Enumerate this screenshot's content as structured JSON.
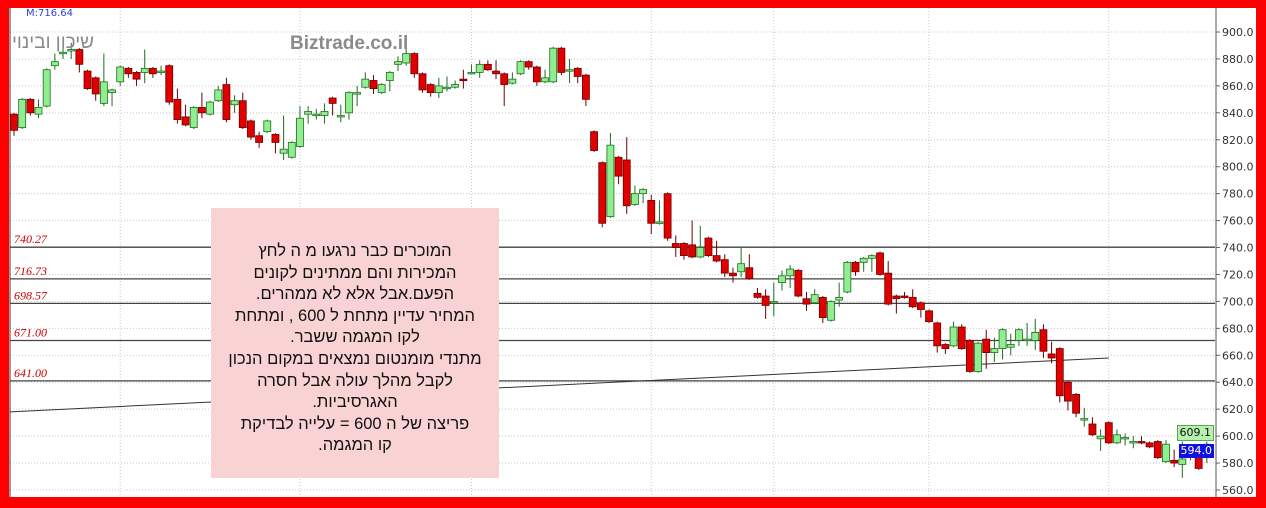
{
  "header": {
    "indicator_label": "M:716.64"
  },
  "watermarks": {
    "company": "שיכון ובינוי",
    "site": "Biztrade.co.il"
  },
  "annotation": {
    "lines": [
      "המוכרים כבר נרגעו  מ ה לחץ",
      "המכירות והם ממתינים  לקונים",
      "הפעם.אבל אלא לא ממהרים.",
      "המחיר  עדיין מתחת ל 600 , ומתחת",
      "לקו המגמה ששבר.",
      "מתנדי מומנטום  נמצאים במקום הנכון",
      "לקבל מהלך עולה אבל חסרה",
      "האגרסיביות.",
      "פריצה של  ה 600 =  עלייה לבדיקת",
      "קו המגמה."
    ]
  },
  "price_tags": {
    "ma": "609.1",
    "last": "594.0"
  },
  "colors": {
    "frame": "#ff0000",
    "up": "#90ee90",
    "down": "#e00000",
    "annotation_bg": "#f9d3d4",
    "level_label": "#cc0000",
    "last_tag": "#1010e0"
  },
  "chart_data": {
    "type": "candlestick",
    "ylim": [
      560,
      900
    ],
    "y_ticks": [
      "560.0",
      "580.0",
      "600.0",
      "620.0",
      "640.0",
      "660.0",
      "680.0",
      "700.0",
      "720.0",
      "740.0",
      "760.0",
      "780.0",
      "800.0",
      "820.0",
      "840.0",
      "860.0",
      "880.0",
      "900.0"
    ],
    "grid": true,
    "levels": [
      {
        "value": 740.27,
        "label": "740.27"
      },
      {
        "value": 716.73,
        "label": "716.73"
      },
      {
        "value": 698.57,
        "label": "698.57"
      },
      {
        "value": 671.0,
        "label": "671.00"
      },
      {
        "value": 641.0,
        "label": "641.00"
      }
    ],
    "trendline": {
      "from": [
        0,
        618
      ],
      "to": [
        134,
        658
      ]
    },
    "ohlc": [
      [
        839,
        840,
        823,
        827
      ],
      [
        829,
        851,
        828,
        850
      ],
      [
        850,
        851,
        838,
        840
      ],
      [
        839,
        850,
        836,
        844
      ],
      [
        845,
        873,
        844,
        872
      ],
      [
        875,
        884,
        872,
        878
      ],
      [
        884,
        890,
        880,
        885
      ],
      [
        886,
        892,
        880,
        887
      ],
      [
        887,
        888,
        870,
        876
      ],
      [
        871,
        872,
        857,
        858
      ],
      [
        866,
        867,
        849,
        854
      ],
      [
        847,
        884,
        845,
        863
      ],
      [
        855,
        858,
        845,
        857
      ],
      [
        863,
        875,
        860,
        874
      ],
      [
        873,
        874,
        866,
        869
      ],
      [
        870,
        871,
        860,
        865
      ],
      [
        870,
        887,
        862,
        873
      ],
      [
        873,
        874,
        866,
        869
      ],
      [
        870,
        875,
        868,
        871
      ],
      [
        875,
        876,
        846,
        848
      ],
      [
        850,
        858,
        832,
        835
      ],
      [
        837,
        846,
        830,
        831
      ],
      [
        829,
        845,
        828,
        844
      ],
      [
        844,
        855,
        836,
        840
      ],
      [
        839,
        849,
        838,
        848
      ],
      [
        849,
        860,
        848,
        857
      ],
      [
        861,
        866,
        833,
        835
      ],
      [
        846,
        853,
        840,
        849
      ],
      [
        849,
        855,
        828,
        829
      ],
      [
        834,
        835,
        820,
        822
      ],
      [
        823,
        826,
        814,
        818
      ],
      [
        826,
        835,
        825,
        834
      ],
      [
        824,
        825,
        810,
        818
      ],
      [
        810,
        838,
        805,
        813
      ],
      [
        807,
        819,
        806,
        818
      ],
      [
        815,
        845,
        814,
        836
      ],
      [
        839,
        845,
        832,
        841
      ],
      [
        839,
        843,
        835,
        839
      ],
      [
        838,
        847,
        832,
        841
      ],
      [
        851,
        852,
        838,
        847
      ],
      [
        838,
        846,
        833,
        838
      ],
      [
        840,
        856,
        835,
        855
      ],
      [
        855,
        860,
        845,
        855
      ],
      [
        859,
        870,
        858,
        865
      ],
      [
        864,
        868,
        854,
        858
      ],
      [
        855,
        862,
        854,
        861
      ],
      [
        864,
        871,
        856,
        870
      ],
      [
        876,
        882,
        871,
        878
      ],
      [
        877,
        889,
        875,
        884
      ],
      [
        884,
        885,
        866,
        869
      ],
      [
        869,
        870,
        855,
        857
      ],
      [
        861,
        862,
        852,
        855
      ],
      [
        855,
        866,
        851,
        860
      ],
      [
        859,
        867,
        856,
        859
      ],
      [
        859,
        864,
        858,
        861
      ],
      [
        865,
        872,
        858,
        864
      ],
      [
        870,
        876,
        869,
        870
      ],
      [
        870,
        879,
        866,
        876
      ],
      [
        876,
        879,
        871,
        872
      ],
      [
        871,
        879,
        865,
        869
      ],
      [
        869,
        870,
        845,
        861
      ],
      [
        862,
        870,
        861,
        865
      ],
      [
        869,
        879,
        868,
        878
      ],
      [
        878,
        879,
        872,
        874
      ],
      [
        874,
        875,
        860,
        863
      ],
      [
        863,
        872,
        862,
        866
      ],
      [
        863,
        889,
        862,
        888
      ],
      [
        888,
        889,
        868,
        870
      ],
      [
        872,
        880,
        862,
        872
      ],
      [
        873,
        874,
        862,
        867
      ],
      [
        868,
        869,
        845,
        850
      ],
      [
        826,
        827,
        811,
        812
      ],
      [
        803,
        804,
        755,
        758
      ],
      [
        763,
        825,
        762,
        816
      ],
      [
        807,
        808,
        787,
        793
      ],
      [
        805,
        822,
        765,
        771
      ],
      [
        772,
        786,
        771,
        780
      ],
      [
        780,
        784,
        773,
        783
      ],
      [
        775,
        779,
        750,
        758
      ],
      [
        758,
        775,
        757,
        759
      ],
      [
        780,
        781,
        745,
        747
      ],
      [
        743,
        749,
        733,
        740
      ],
      [
        743,
        744,
        731,
        734
      ],
      [
        742,
        760,
        732,
        733
      ],
      [
        733,
        756,
        732,
        740
      ],
      [
        747,
        748,
        733,
        734
      ],
      [
        734,
        745,
        729,
        730
      ],
      [
        731,
        735,
        718,
        721
      ],
      [
        721,
        725,
        714,
        719
      ],
      [
        722,
        740,
        718,
        728
      ],
      [
        725,
        735,
        716,
        717
      ],
      [
        706,
        710,
        702,
        703
      ],
      [
        704,
        709,
        687,
        697
      ],
      [
        699,
        714,
        689,
        700
      ],
      [
        714,
        723,
        708,
        719
      ],
      [
        719,
        727,
        710,
        724
      ],
      [
        723,
        724,
        703,
        704
      ],
      [
        702,
        707,
        693,
        698
      ],
      [
        699,
        709,
        698,
        705
      ],
      [
        703,
        704,
        684,
        688
      ],
      [
        686,
        701,
        685,
        700
      ],
      [
        701,
        714,
        696,
        703
      ],
      [
        707,
        730,
        706,
        729
      ],
      [
        729,
        730,
        719,
        722
      ],
      [
        729,
        733,
        722,
        732
      ],
      [
        732,
        735,
        722,
        734
      ],
      [
        736,
        737,
        719,
        720
      ],
      [
        721,
        730,
        697,
        698
      ],
      [
        704,
        705,
        691,
        702
      ],
      [
        704,
        707,
        702,
        703
      ],
      [
        703,
        709,
        695,
        696
      ],
      [
        699,
        700,
        688,
        694
      ],
      [
        693,
        694,
        684,
        685
      ],
      [
        684,
        685,
        662,
        667
      ],
      [
        668,
        669,
        661,
        665
      ],
      [
        667,
        685,
        666,
        681
      ],
      [
        681,
        683,
        664,
        665
      ],
      [
        671,
        672,
        647,
        648
      ],
      [
        648,
        670,
        647,
        669
      ],
      [
        672,
        679,
        650,
        662
      ],
      [
        662,
        673,
        655,
        665
      ],
      [
        665,
        680,
        657,
        679
      ],
      [
        666,
        676,
        660,
        668
      ],
      [
        671,
        680,
        667,
        679
      ],
      [
        671,
        684,
        667,
        672
      ],
      [
        671,
        687,
        664,
        677
      ],
      [
        679,
        683,
        658,
        663
      ],
      [
        661,
        670,
        654,
        658
      ],
      [
        665,
        666,
        625,
        630
      ],
      [
        640,
        641,
        619,
        626
      ],
      [
        631,
        632,
        614,
        617
      ],
      [
        612,
        621,
        607,
        613
      ],
      [
        609,
        614,
        600,
        601
      ],
      [
        598,
        605,
        589,
        600
      ],
      [
        610,
        611,
        594,
        595
      ],
      [
        595,
        605,
        594,
        601
      ],
      [
        598,
        602,
        593,
        599
      ],
      [
        596,
        600,
        591,
        596
      ],
      [
        596,
        600,
        594,
        595
      ],
      [
        595,
        596,
        591,
        592
      ],
      [
        596,
        597,
        583,
        584
      ],
      [
        581,
        597,
        580,
        594
      ],
      [
        582,
        590,
        577,
        580
      ],
      [
        579,
        596,
        569,
        583
      ],
      [
        585,
        594,
        582,
        590
      ],
      [
        585,
        591,
        575,
        576
      ],
      [
        584,
        596,
        580,
        594
      ]
    ]
  }
}
